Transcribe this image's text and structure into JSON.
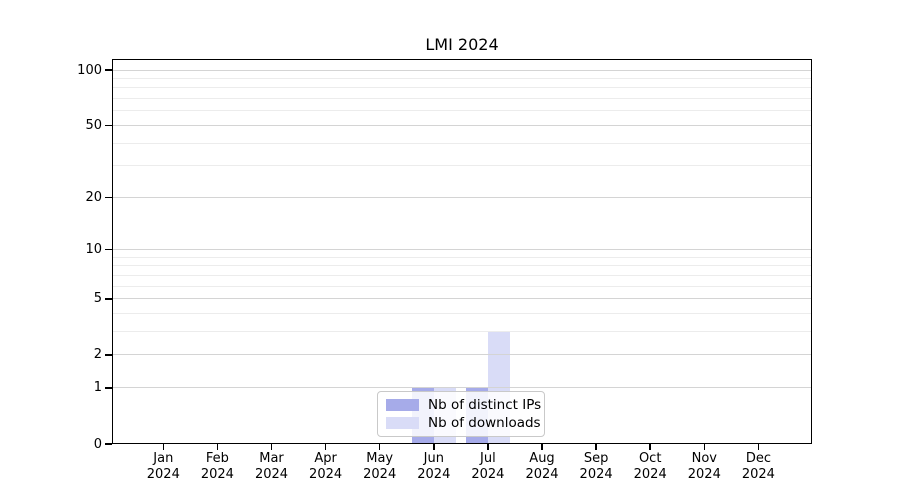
{
  "chart_data": {
    "type": "bar",
    "title": "LMI 2024",
    "categories": [
      "Jan\n2024",
      "Feb\n2024",
      "Mar\n2024",
      "Apr\n2024",
      "May\n2024",
      "Jun\n2024",
      "Jul\n2024",
      "Aug\n2024",
      "Sep\n2024",
      "Oct\n2024",
      "Nov\n2024",
      "Dec\n2024"
    ],
    "series": [
      {
        "name": "Nb of distinct IPs",
        "color": "#a6abe9",
        "values": [
          0,
          0,
          0,
          0,
          0,
          1,
          1,
          0,
          0,
          0,
          0,
          0
        ]
      },
      {
        "name": "Nb of downloads",
        "color": "#d9dcf7",
        "values": [
          0,
          0,
          0,
          0,
          0,
          1,
          3,
          0,
          0,
          0,
          0,
          0
        ]
      }
    ],
    "xlabel": "",
    "ylabel": "",
    "yscale": "log1p",
    "ylim": [
      0,
      116
    ],
    "y_major_ticks": [
      0,
      1,
      2,
      5,
      10,
      20,
      50,
      100
    ],
    "y_minor_ticks": [
      3,
      4,
      6,
      7,
      8,
      9,
      30,
      40,
      60,
      70,
      80,
      90
    ],
    "grid": "horizontal major+minor",
    "legend_position": "lower center",
    "colors": {
      "major_grid": "#d4d4d4",
      "minor_grid": "#ececec",
      "axis": "#000000",
      "text": "#000000"
    }
  }
}
